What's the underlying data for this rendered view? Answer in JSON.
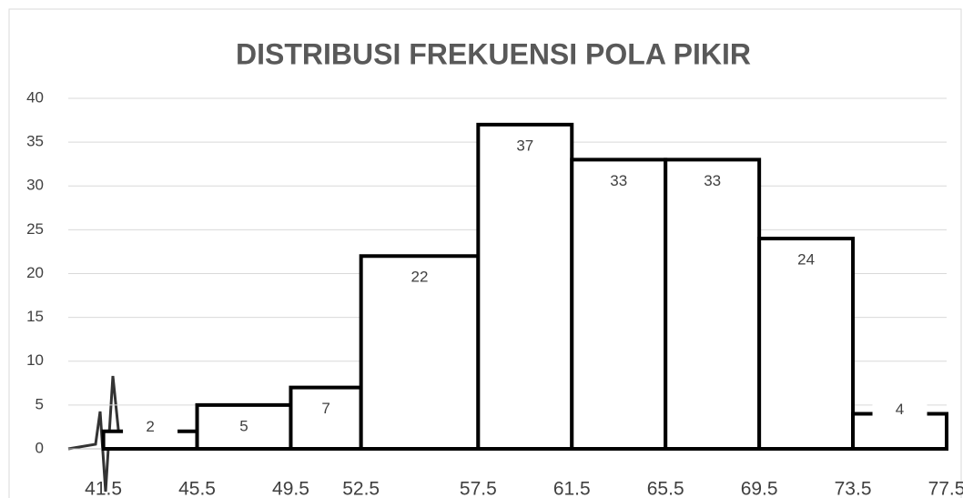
{
  "chart_data": {
    "type": "histogram",
    "title": "DISTRIBUSI FREKUENSI POLA PIKIR",
    "bins": [
      41.5,
      45.5,
      49.5,
      52.5,
      57.5,
      61.5,
      65.5,
      69.5,
      73.5,
      77.5
    ],
    "values": [
      2,
      5,
      7,
      22,
      37,
      33,
      33,
      24,
      4
    ],
    "color": "#ffffff",
    "edge_color": "#000000",
    "xlim": [
      40,
      77.5
    ],
    "ylim": [
      0,
      40
    ],
    "yticks": [
      0,
      5,
      10,
      15,
      20,
      25,
      30,
      35,
      40
    ],
    "grid": true
  }
}
